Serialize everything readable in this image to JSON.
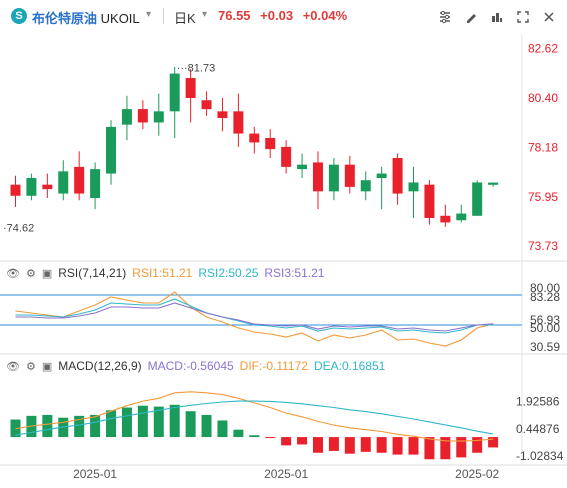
{
  "header": {
    "instrument_name": "布伦特原油",
    "symbol": "UKOIL",
    "timeframe": "日K",
    "last_price": "76.55",
    "change": "+0.03",
    "change_pct": "+0.04%"
  },
  "colors": {
    "up": "#e8212c",
    "down": "#1a9b5b",
    "rsi1": "#f19a38",
    "rsi2": "#2fb8c9",
    "rsi3": "#8a70cf",
    "diff": "#f19a38",
    "dea": "#2fb8c9",
    "hline": "#2c8ed8"
  },
  "chart_data": [
    {
      "type": "candlestick",
      "price_labels": [
        "82.62",
        "80.40",
        "78.18",
        "75.95",
        "73.73"
      ],
      "price_ticks": [
        82.62,
        80.4,
        78.18,
        75.95,
        73.73
      ],
      "ylim": [
        73.2,
        83.1
      ],
      "annotations": {
        "high": "81.73",
        "low": "74.62"
      },
      "x_labels": [
        "2025-01",
        "2025-01",
        "2025-02"
      ],
      "candles": [
        {
          "o": 76.5,
          "h": 76.9,
          "l": 75.5,
          "c": 76.0
        },
        {
          "o": 76.0,
          "h": 77.0,
          "l": 75.8,
          "c": 76.8
        },
        {
          "o": 76.5,
          "h": 77.0,
          "l": 75.9,
          "c": 76.3
        },
        {
          "o": 76.1,
          "h": 77.6,
          "l": 75.8,
          "c": 77.1
        },
        {
          "o": 77.3,
          "h": 78.0,
          "l": 75.8,
          "c": 76.1
        },
        {
          "o": 75.9,
          "h": 77.5,
          "l": 75.4,
          "c": 77.2
        },
        {
          "o": 77.0,
          "h": 79.4,
          "l": 76.5,
          "c": 79.1
        },
        {
          "o": 79.2,
          "h": 80.5,
          "l": 78.5,
          "c": 79.9
        },
        {
          "o": 79.9,
          "h": 80.3,
          "l": 79.0,
          "c": 79.3
        },
        {
          "o": 79.3,
          "h": 80.6,
          "l": 78.7,
          "c": 79.8
        },
        {
          "o": 79.8,
          "h": 81.8,
          "l": 78.6,
          "c": 81.5
        },
        {
          "o": 81.3,
          "h": 81.7,
          "l": 79.3,
          "c": 80.4
        },
        {
          "o": 80.3,
          "h": 80.7,
          "l": 79.6,
          "c": 79.9
        },
        {
          "o": 79.8,
          "h": 80.4,
          "l": 78.9,
          "c": 79.5
        },
        {
          "o": 79.8,
          "h": 80.6,
          "l": 78.2,
          "c": 78.8
        },
        {
          "o": 78.8,
          "h": 79.1,
          "l": 77.9,
          "c": 78.4
        },
        {
          "o": 78.6,
          "h": 79.0,
          "l": 77.7,
          "c": 78.1
        },
        {
          "o": 78.2,
          "h": 78.5,
          "l": 77.0,
          "c": 77.3
        },
        {
          "o": 77.2,
          "h": 77.9,
          "l": 76.8,
          "c": 77.4
        },
        {
          "o": 77.5,
          "h": 78.0,
          "l": 75.4,
          "c": 76.2
        },
        {
          "o": 76.2,
          "h": 77.7,
          "l": 75.8,
          "c": 77.4
        },
        {
          "o": 77.4,
          "h": 77.8,
          "l": 76.1,
          "c": 76.4
        },
        {
          "o": 76.2,
          "h": 77.1,
          "l": 75.8,
          "c": 76.7
        },
        {
          "o": 76.8,
          "h": 77.3,
          "l": 75.4,
          "c": 77.0
        },
        {
          "o": 77.7,
          "h": 77.9,
          "l": 75.6,
          "c": 76.1
        },
        {
          "o": 76.2,
          "h": 77.3,
          "l": 75.0,
          "c": 76.6
        },
        {
          "o": 76.5,
          "h": 76.7,
          "l": 74.7,
          "c": 75.0
        },
        {
          "o": 75.1,
          "h": 75.6,
          "l": 74.6,
          "c": 74.8
        },
        {
          "o": 74.9,
          "h": 75.6,
          "l": 74.8,
          "c": 75.2
        },
        {
          "o": 75.1,
          "h": 76.7,
          "l": 75.1,
          "c": 76.6
        },
        {
          "o": 76.5,
          "h": 76.6,
          "l": 76.4,
          "c": 76.55
        }
      ]
    },
    {
      "type": "line",
      "name": "RSI(7,14,21)",
      "labels": {
        "rsi1": "RSI1:51.21",
        "rsi2": "RSI2:50.25",
        "rsi3": "RSI3:51.21"
      },
      "y_labels": [
        "80.00",
        "83.28",
        "56.93",
        "50.00",
        "30.59"
      ],
      "ylim": [
        25,
        92
      ],
      "ref_lines": [
        80,
        50
      ],
      "series": [
        {
          "key": "rsi1",
          "values": [
            64,
            62,
            60,
            58,
            64,
            70,
            78,
            75,
            72,
            72,
            83,
            68,
            58,
            53,
            47,
            43,
            41,
            38,
            42,
            34,
            40,
            37,
            40,
            45,
            35,
            36,
            32,
            29,
            35,
            47,
            51.21
          ]
        },
        {
          "key": "rsi2",
          "values": [
            60,
            60,
            59,
            58,
            61,
            65,
            72,
            71,
            70,
            70,
            76,
            69,
            62,
            58,
            54,
            50,
            49,
            47,
            49,
            44,
            47,
            46,
            47,
            48,
            44,
            45,
            43,
            42,
            45,
            50,
            50.25
          ]
        },
        {
          "key": "rsi3",
          "values": [
            58,
            58,
            57,
            57,
            59,
            62,
            68,
            68,
            67,
            67,
            72,
            67,
            62,
            58,
            55,
            51,
            50,
            49,
            50,
            46,
            49,
            48,
            49,
            49,
            46,
            47,
            45,
            44,
            47,
            50,
            51.21
          ]
        }
      ]
    },
    {
      "type": "bar",
      "name": "MACD(12,26,9)",
      "labels": {
        "macd": "MACD:-0.56045",
        "dif": "DIF:-0.11172",
        "dea": "DEA:0.16851"
      },
      "y_labels": [
        "1.92586",
        "0.44876",
        "-1.02834"
      ],
      "ylim": [
        -1.35,
        3.2
      ],
      "macd": [
        0.95,
        1.15,
        1.2,
        1.05,
        1.15,
        1.2,
        1.45,
        1.6,
        1.7,
        1.65,
        1.75,
        1.4,
        1.2,
        0.9,
        0.4,
        0.1,
        -0.02,
        -0.45,
        -0.4,
        -0.85,
        -0.75,
        -0.9,
        -0.8,
        -0.85,
        -0.95,
        -0.95,
        -1.2,
        -1.2,
        -1.1,
        -0.85,
        -0.56
      ],
      "dif": [
        0.45,
        0.6,
        0.7,
        0.8,
        0.95,
        1.1,
        1.4,
        1.7,
        1.95,
        2.1,
        2.4,
        2.45,
        2.4,
        2.3,
        2.1,
        1.85,
        1.6,
        1.3,
        1.1,
        0.85,
        0.65,
        0.5,
        0.4,
        0.3,
        0.15,
        0.05,
        -0.1,
        -0.2,
        -0.22,
        -0.18,
        -0.11
      ],
      "dea": [
        0.1,
        0.25,
        0.4,
        0.55,
        0.65,
        0.8,
        1.0,
        1.15,
        1.3,
        1.45,
        1.6,
        1.72,
        1.82,
        1.9,
        1.95,
        1.95,
        1.93,
        1.88,
        1.8,
        1.7,
        1.6,
        1.48,
        1.38,
        1.26,
        1.12,
        0.98,
        0.82,
        0.66,
        0.5,
        0.32,
        0.17
      ]
    }
  ]
}
